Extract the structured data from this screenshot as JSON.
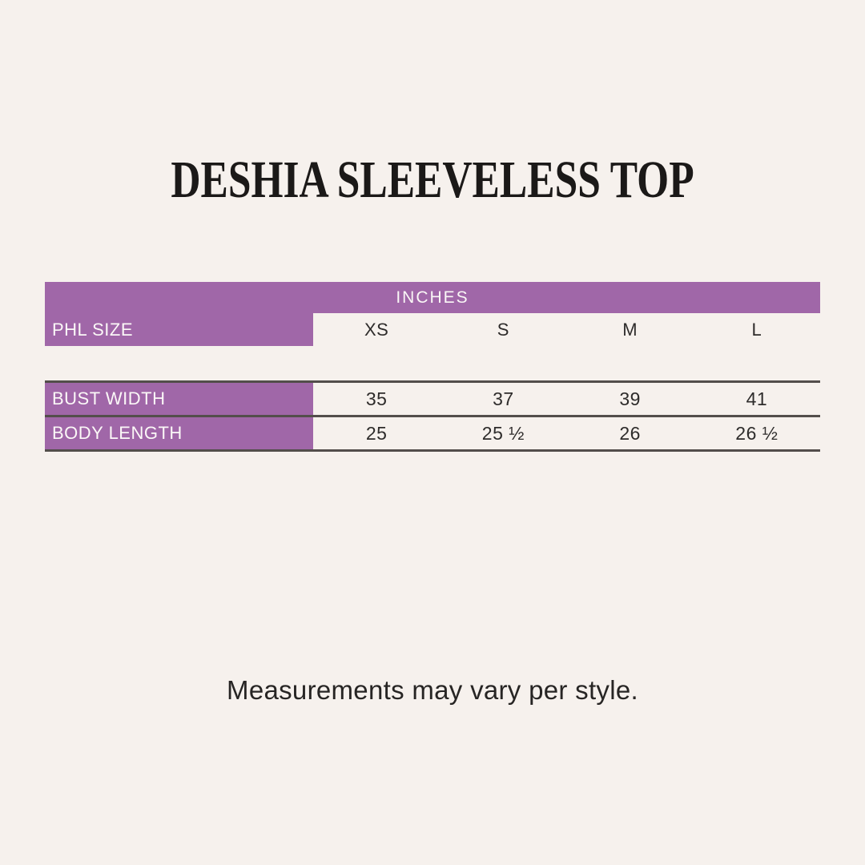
{
  "page": {
    "background_color": "#f6f1ed",
    "accent_color": "#a067a8",
    "line_color": "#534e4b",
    "footnote": "Measurements may vary per style."
  },
  "chart_data": {
    "type": "table",
    "title": "DESHIA SLEEVELESS TOP",
    "units_header": "INCHES",
    "size_label": "PHL SIZE",
    "sizes": [
      "XS",
      "S",
      "M",
      "L"
    ],
    "rows": [
      {
        "label": "BUST WIDTH",
        "values": [
          "35",
          "37",
          "39",
          "41"
        ]
      },
      {
        "label": "BODY LENGTH",
        "values": [
          "25",
          "25 ½",
          "26",
          "26 ½"
        ]
      }
    ]
  }
}
